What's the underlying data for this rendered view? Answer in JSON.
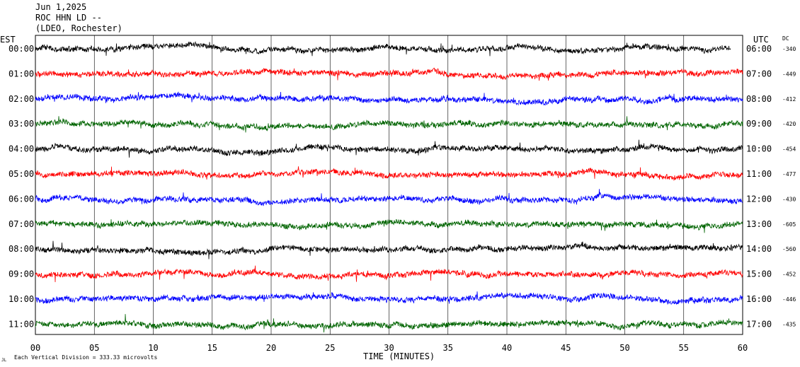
{
  "header": {
    "line1": "Jun 1,2025",
    "line2": "ROC HHN LD --",
    "line3": "(LDEO, Rochester)"
  },
  "chart_data": {
    "type": "line",
    "description_visible": "helicorder seismogram",
    "left_axis_title": "EST",
    "right_axis_title": "UTC",
    "dc_title": "DC",
    "xlabel": "TIME (MINUTES)",
    "xlim": [
      0,
      60
    ],
    "x_ticks": [
      "00",
      "05",
      "10",
      "15",
      "20",
      "25",
      "30",
      "35",
      "40",
      "45",
      "50",
      "55",
      "60"
    ],
    "footer": "Each Vertical Division =  333.33 microvolts",
    "footer_mark": "JL",
    "trace_colors": [
      "#000000",
      "#ff0000",
      "#0000ff",
      "#006400"
    ],
    "rows": [
      {
        "est": "00:00",
        "utc": "06:00",
        "dc": "-340",
        "end_minute": 59
      },
      {
        "est": "01:00",
        "utc": "07:00",
        "dc": "-449",
        "end_minute": 60
      },
      {
        "est": "02:00",
        "utc": "08:00",
        "dc": "-412",
        "end_minute": 60
      },
      {
        "est": "03:00",
        "utc": "09:00",
        "dc": "-420",
        "end_minute": 60
      },
      {
        "est": "04:00",
        "utc": "10:00",
        "dc": "-454",
        "end_minute": 60
      },
      {
        "est": "05:00",
        "utc": "11:00",
        "dc": "-477",
        "end_minute": 60
      },
      {
        "est": "06:00",
        "utc": "12:00",
        "dc": "-430",
        "end_minute": 60
      },
      {
        "est": "07:00",
        "utc": "13:00",
        "dc": "-605",
        "end_minute": 60
      },
      {
        "est": "08:00",
        "utc": "14:00",
        "dc": "-560",
        "end_minute": 60
      },
      {
        "est": "09:00",
        "utc": "15:00",
        "dc": "-452",
        "end_minute": 60
      },
      {
        "est": "10:00",
        "utc": "16:00",
        "dc": "-446",
        "end_minute": 60
      },
      {
        "est": "11:00",
        "utc": "17:00",
        "dc": "-435",
        "end_minute": 60
      }
    ]
  }
}
